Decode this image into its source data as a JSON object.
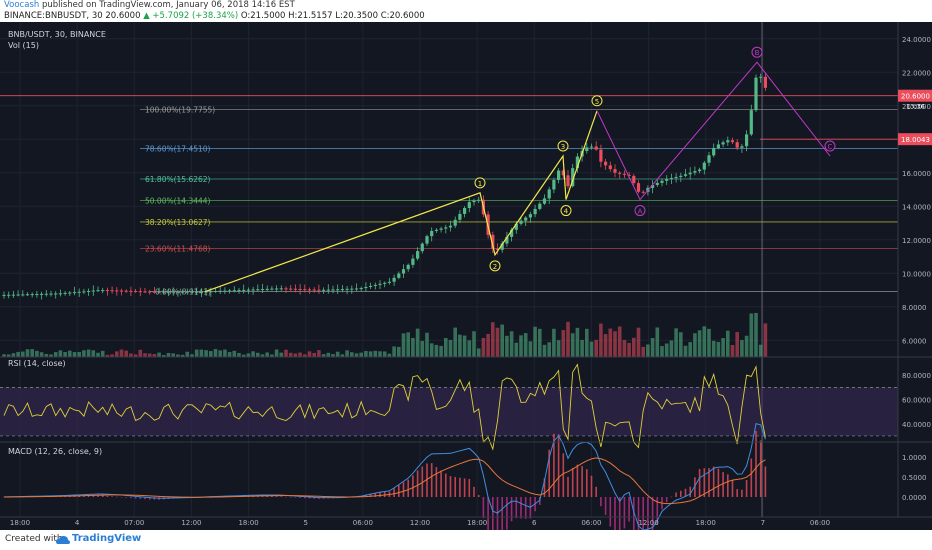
{
  "header": {
    "author": "Voocash",
    "published": " published on TradingView.com, January 06, 2018 14:16 EST",
    "symbol_line": "BINANCE:BNBUSDT, 30  20.6000 ",
    "change": "▲ +5.7092 (+38.34%)",
    "ohlc": " O:21.5000  H:21.5157  L:20.3500  C:20.6000"
  },
  "footer": {
    "created": "Created with",
    "brand": "TradingView"
  },
  "chart_data": {
    "type": "line",
    "title": "BNB/USDT, 30, BINANCE",
    "volume_label": "Vol (15)",
    "rsi_label": "RSI (14, close)",
    "macd_label": "MACD (12, 26, close, 9)",
    "x_ticks": [
      "18:00",
      "4",
      "07:00",
      "12:00",
      "18:00",
      "5",
      "06:00",
      "12:00",
      "18:00",
      "6",
      "06:00",
      "12:00",
      "18:00",
      "7",
      "06:00"
    ],
    "price_ticks": [
      "24.0000",
      "22.0000",
      "20.0000",
      "18.0000",
      "16.0000",
      "14.0000",
      "12.0000",
      "10.0000",
      "8.0000",
      "6.0000"
    ],
    "price_ylim": [
      5,
      25
    ],
    "rsi_ticks": [
      "80.0000",
      "60.0000",
      "40.0000"
    ],
    "macd_ticks": [
      "1.0000",
      "0.5000",
      "0.0000"
    ],
    "last_price": "20.6000",
    "countdown": "13:36",
    "hline_label": "18.0043",
    "fib_levels": [
      {
        "label": "100.00%(19.7755)",
        "value": 19.7755,
        "color": "#9a9a9a"
      },
      {
        "label": "78.60%(17.4510)",
        "value": 17.451,
        "color": "#5b9bd5"
      },
      {
        "label": "61.80%(15.6262)",
        "value": 15.6262,
        "color": "#4fc3a1"
      },
      {
        "label": "50.00%(14.3444)",
        "value": 14.3444,
        "color": "#5fbf5f"
      },
      {
        "label": "38.20%(13.0627)",
        "value": 13.0627,
        "color": "#c8c83c"
      },
      {
        "label": "23.60%(11.4768)",
        "value": 11.4768,
        "color": "#d25050"
      },
      {
        "label": "0.00%(8.9141)",
        "value": 8.9141,
        "color": "#9a9a9a"
      }
    ],
    "waves": [
      {
        "label": "1",
        "value": 14.8
      },
      {
        "label": "2",
        "value": 11.1
      },
      {
        "label": "3",
        "value": 17.0
      },
      {
        "label": "4",
        "value": 14.4
      },
      {
        "label": "5",
        "value": 19.7
      },
      {
        "label": "A",
        "value": 14.4
      },
      {
        "label": "B",
        "value": 22.6
      },
      {
        "label": "C",
        "value": 17.0
      }
    ],
    "colors": {
      "up": "#53b987",
      "down": "#eb4d5c",
      "wave": "#f2e84a",
      "abc": "#c038c8",
      "rsi": "#e0cf3a",
      "macd": "#3f8ee0",
      "signal": "#e8763a"
    }
  }
}
